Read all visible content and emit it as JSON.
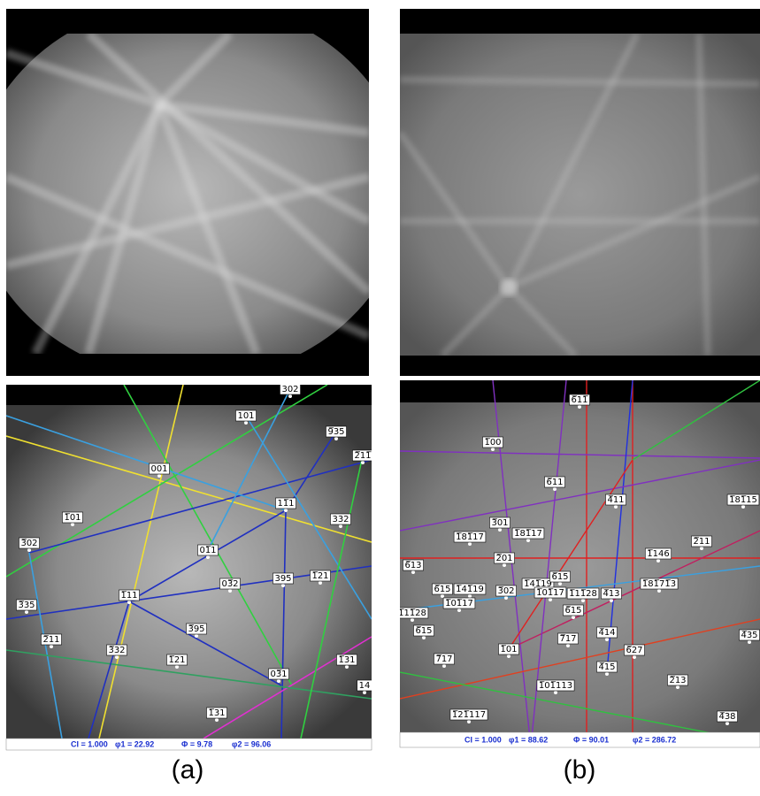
{
  "panels": [
    {
      "caption": "(a)",
      "status": [
        "CI = 1.000",
        "φ1 = 22.92",
        "Φ = 9.78",
        "φ2 = 96.06"
      ],
      "labels": [
        "302",
        "101",
        "9̅35",
        "2̅11̅",
        "001",
        "11̅1",
        "332",
        "1̅01",
        "3̅02",
        "01̅1",
        "03̅2",
        "395",
        "1̅21",
        "1̅11",
        "3̅35",
        "3̅95",
        "2̅11",
        "3̅32",
        "1̅21",
        "1̅31",
        "03̅1",
        "1̅31",
        "14"
      ]
    },
    {
      "caption": "(b)",
      "status": [
        "CI = 1.000",
        "φ1 = 88.62",
        "Φ = 90.01",
        "φ2 = 286.72"
      ],
      "labels": [
        "6̅11̅",
        "1̅00",
        "6̅11",
        "4̅11",
        "1̅81̅15",
        "3̅01",
        "1̅81̅17",
        "1̅81̅17",
        "2̅11",
        "1̅146",
        "2̅01",
        "6̅13",
        "6̅15",
        "1̅41̅19",
        "3̅02",
        "1̅41̅19",
        "6̅15",
        "1̅01̅17",
        "1̅11̅28",
        "4̅13",
        "1̅11̅28",
        "1̅01̅17",
        "6̅15",
        "6̅15",
        "1̅01",
        "7̅17",
        "4̅14",
        "6̅27",
        "7̅17",
        "4̅15",
        "2̅13",
        "1̅01̅113",
        "1̅21̅117",
        "4̅38",
        "4̅35",
        "1̅81̅71̅3"
      ]
    }
  ]
}
